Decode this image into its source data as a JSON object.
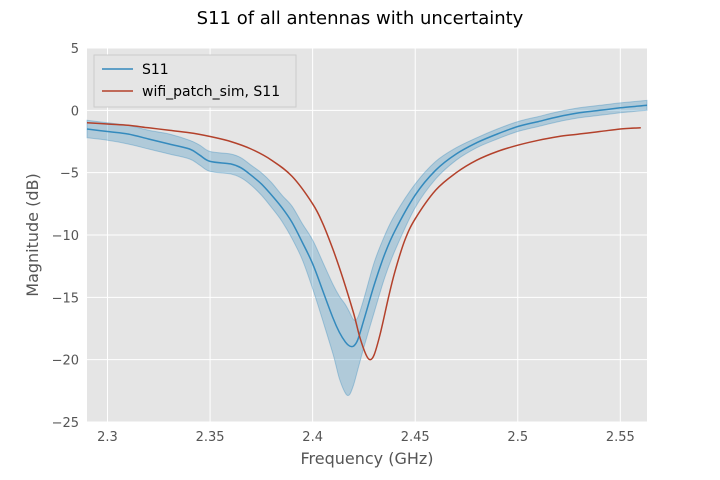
{
  "chart_data": {
    "type": "line",
    "title": "S11 of all antennas with uncertainty",
    "xlabel": "Frequency (GHz)",
    "ylabel": "Magnitude (dB)",
    "xlim": [
      2.29,
      2.563
    ],
    "ylim": [
      -25,
      5
    ],
    "xticks": [
      2.3,
      2.35,
      2.4,
      2.45,
      2.5,
      2.55
    ],
    "xtick_labels": [
      "2.3",
      "2.35",
      "2.4",
      "2.45",
      "2.5",
      "2.55"
    ],
    "yticks": [
      5,
      0,
      -5,
      -10,
      -15,
      -20,
      -25
    ],
    "ytick_labels": [
      "5",
      "0",
      "−5",
      "−10",
      "−15",
      "−20",
      "−25"
    ],
    "grid": true,
    "legend_position": "upper-left",
    "series": [
      {
        "name": "S11",
        "color": "#348abd",
        "band_color": "#348abd",
        "x": [
          2.29,
          2.3,
          2.31,
          2.32,
          2.33,
          2.34,
          2.345,
          2.35,
          2.36,
          2.365,
          2.37,
          2.375,
          2.38,
          2.385,
          2.39,
          2.395,
          2.4,
          2.405,
          2.41,
          2.413,
          2.416,
          2.418,
          2.42,
          2.422,
          2.425,
          2.43,
          2.435,
          2.44,
          2.45,
          2.46,
          2.47,
          2.48,
          2.49,
          2.5,
          2.51,
          2.52,
          2.53,
          2.54,
          2.55,
          2.563
        ],
        "values": [
          -1.5,
          -1.7,
          -1.9,
          -2.3,
          -2.7,
          -3.1,
          -3.6,
          -4.1,
          -4.3,
          -4.6,
          -5.2,
          -5.9,
          -6.8,
          -7.8,
          -9.0,
          -10.6,
          -12.3,
          -14.5,
          -16.7,
          -17.8,
          -18.6,
          -18.9,
          -18.9,
          -18.4,
          -16.8,
          -14.0,
          -11.6,
          -9.7,
          -6.8,
          -4.8,
          -3.5,
          -2.6,
          -1.9,
          -1.3,
          -0.9,
          -0.5,
          -0.2,
          0.0,
          0.2,
          0.4
        ],
        "lower": [
          -2.2,
          -2.4,
          -2.7,
          -3.1,
          -3.5,
          -3.9,
          -4.4,
          -4.9,
          -5.1,
          -5.4,
          -6.0,
          -6.8,
          -7.8,
          -8.9,
          -10.3,
          -12.0,
          -14.3,
          -16.9,
          -19.6,
          -21.5,
          -22.7,
          -22.8,
          -22.0,
          -20.8,
          -19.0,
          -16.2,
          -13.5,
          -11.3,
          -7.8,
          -5.5,
          -4.0,
          -3.0,
          -2.3,
          -1.7,
          -1.3,
          -0.9,
          -0.6,
          -0.4,
          -0.2,
          0.0
        ],
        "upper": [
          -0.8,
          -1.0,
          -1.2,
          -1.6,
          -1.9,
          -2.4,
          -2.8,
          -3.3,
          -3.5,
          -3.8,
          -4.4,
          -5.0,
          -5.8,
          -6.8,
          -7.7,
          -9.1,
          -10.4,
          -12.2,
          -14.0,
          -14.9,
          -15.6,
          -16.2,
          -16.8,
          -16.6,
          -15.1,
          -12.2,
          -10.1,
          -8.4,
          -5.9,
          -4.1,
          -3.0,
          -2.2,
          -1.5,
          -0.9,
          -0.5,
          -0.1,
          0.2,
          0.4,
          0.6,
          0.8
        ]
      },
      {
        "name": "wifi_patch_sim, S11",
        "color": "#b3412b",
        "x": [
          2.29,
          2.3,
          2.31,
          2.32,
          2.33,
          2.34,
          2.35,
          2.36,
          2.37,
          2.38,
          2.39,
          2.4,
          2.405,
          2.41,
          2.415,
          2.42,
          2.423,
          2.426,
          2.428,
          2.43,
          2.433,
          2.437,
          2.44,
          2.445,
          2.45,
          2.46,
          2.47,
          2.48,
          2.49,
          2.5,
          2.51,
          2.52,
          2.53,
          2.54,
          2.55,
          2.56
        ],
        "values": [
          -1.0,
          -1.1,
          -1.2,
          -1.4,
          -1.6,
          -1.8,
          -2.1,
          -2.5,
          -3.1,
          -4.0,
          -5.3,
          -7.5,
          -9.1,
          -11.2,
          -13.6,
          -16.3,
          -18.2,
          -19.6,
          -20.0,
          -19.6,
          -17.9,
          -15.0,
          -13.0,
          -10.4,
          -8.7,
          -6.4,
          -5.0,
          -4.0,
          -3.3,
          -2.8,
          -2.4,
          -2.1,
          -1.9,
          -1.7,
          -1.5,
          -1.4
        ]
      }
    ]
  }
}
